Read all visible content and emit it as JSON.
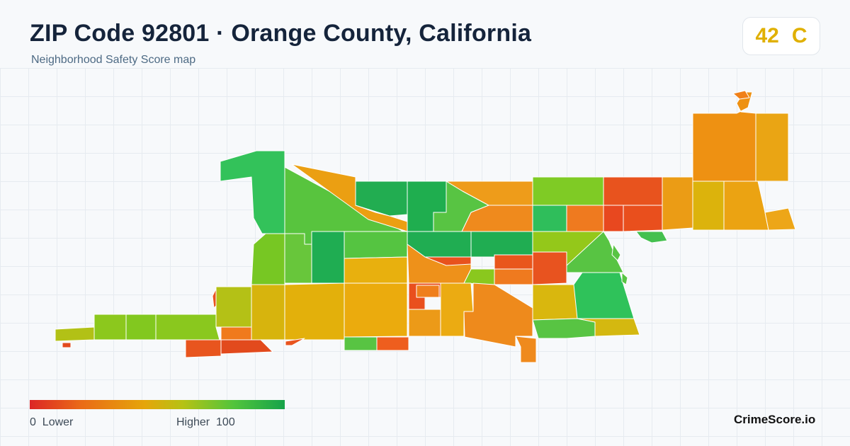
{
  "header": {
    "title": "ZIP Code 92801 · Orange County, California",
    "subtitle": "Neighborhood Safety Score map"
  },
  "score": {
    "value": "42",
    "grade": "C",
    "color": "#e0b000"
  },
  "legend": {
    "min_label": "0",
    "low_label": "Lower",
    "high_label": "Higher",
    "max_label": "100",
    "colors": [
      "#dc2626",
      "#ea6a17",
      "#e5a50a",
      "#b6c214",
      "#52c43c",
      "#16a34a"
    ]
  },
  "brand": "CrimeScore.io"
}
